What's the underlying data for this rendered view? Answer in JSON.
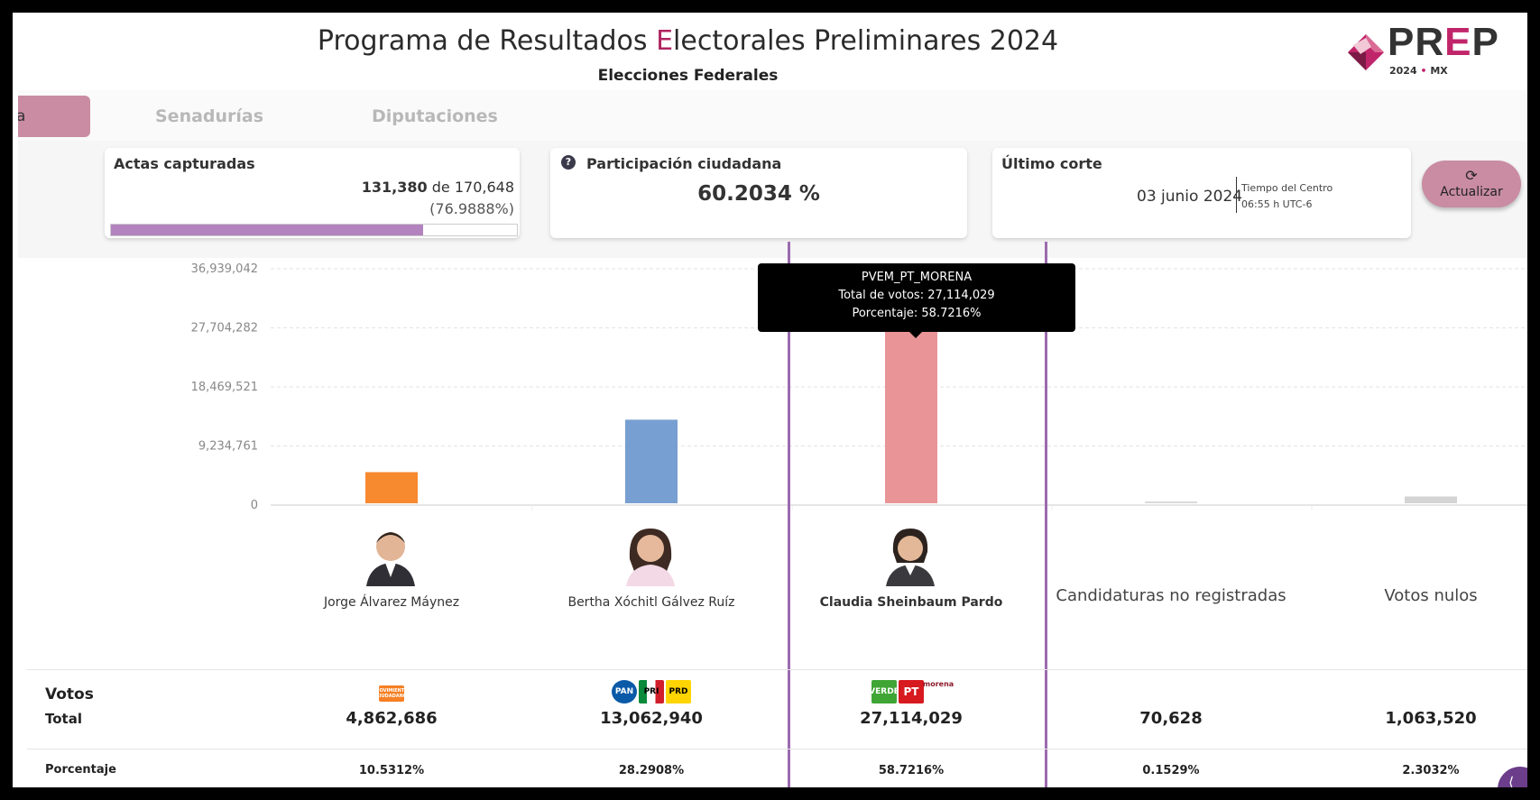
{
  "header": {
    "title_pre": "Programa de Resultados ",
    "title_e": "E",
    "title_post": "lectorales Preliminares 2024",
    "subtitle": "Elecciones Federales",
    "logo_text_a": "PR",
    "logo_text_e": "E",
    "logo_text_b": "P",
    "logo_year": "2024",
    "logo_dot": "•",
    "logo_country": "MX"
  },
  "tabs": {
    "active_partial": "a",
    "senadurias": "Senadurías",
    "diputaciones": "Diputaciones"
  },
  "stats": {
    "actas_label": "Actas capturadas",
    "actas_captured": "131,380",
    "actas_of": " de 170,648",
    "actas_pct": "(76.9888%)",
    "actas_fraction": 0.769888,
    "participacion_label": "Participación ciudadana",
    "participacion_value": "60.2034 %",
    "corte_label": "Último corte",
    "corte_date": "03 junio 2024",
    "corte_tz": "Tiempo del Centro",
    "corte_time": "06:55 h UTC-6",
    "refresh_icon": "refresh-icon",
    "refresh_label": "Actualizar"
  },
  "tooltip": {
    "name": "PVEM_PT_MORENA",
    "total": "Total de votos: 27,114,029",
    "pct": "Porcentaje: 58.7216%"
  },
  "chart_data": {
    "type": "bar",
    "categories": [
      "Jorge Álvarez Máynez",
      "Bertha Xóchitl Gálvez Ruíz",
      "Claudia Sheinbaum Pardo",
      "Candidaturas no registradas",
      "Votos nulos"
    ],
    "values": [
      4862686,
      13062940,
      27114029,
      70628,
      1063520
    ],
    "colors": [
      "#f7892f",
      "#789fd1",
      "#e99597",
      "#d9d9d9",
      "#d4d4d4"
    ],
    "yticks": [
      "0",
      "9,234,761",
      "18,469,521",
      "27,704,282",
      "36,939,042"
    ],
    "ylim": [
      0,
      36939042
    ],
    "grid": true,
    "selected_index": 2
  },
  "candidates": [
    {
      "name": "Jorge Álvarez Máynez",
      "votes": "4,862,686",
      "pct": "10.5312%"
    },
    {
      "name": "Bertha Xóchitl Gálvez Ruíz",
      "votes": "13,062,940",
      "pct": "28.2908%"
    },
    {
      "name": "Claudia Sheinbaum Pardo",
      "votes": "27,114,029",
      "pct": "58.7216%"
    },
    {
      "name": "Candidaturas no registradas",
      "votes": "70,628",
      "pct": "0.1529%"
    },
    {
      "name": "Votos nulos",
      "votes": "1,063,520",
      "pct": "2.3032%"
    }
  ],
  "table": {
    "votos_label": "Votos",
    "total_label": "Total",
    "pct_label": "Porcentaje"
  },
  "party_logos": {
    "mc": "MOVIMIENTO CIUDADANO",
    "pan": "PAN",
    "pri": "PRI",
    "prd": "PRD",
    "verde": "VERDE",
    "pt": "PT",
    "morena": "morena"
  }
}
